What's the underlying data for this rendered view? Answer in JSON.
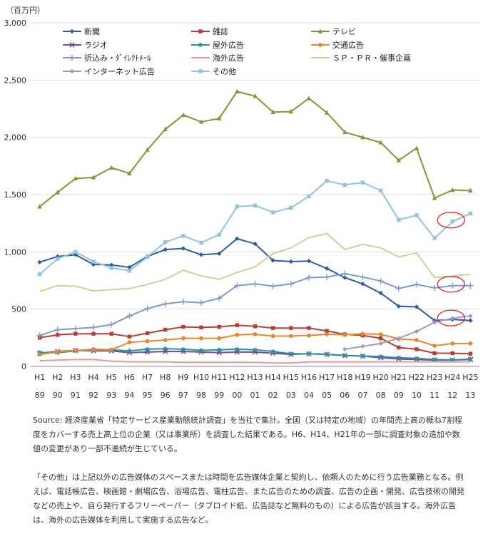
{
  "chart_data": {
    "type": "line",
    "ylabel": "（百万円）",
    "ylim": [
      0,
      3000
    ],
    "yticks": [
      "0",
      "500",
      "1,000",
      "1,500",
      "2,000",
      "2,500",
      "3,000"
    ],
    "grid": "horizontal",
    "legend_position": "top-left",
    "x_top": [
      "H1",
      "H2",
      "H3",
      "H4",
      "H5",
      "H6",
      "H7",
      "H8",
      "H9",
      "H10",
      "H11",
      "H12",
      "H13",
      "H14",
      "H15",
      "H16",
      "H17",
      "H18",
      "H19",
      "H20",
      "H21",
      "H22",
      "H23",
      "H24",
      "H25"
    ],
    "x_bottom": [
      "89",
      "90",
      "91",
      "92",
      "93",
      "94",
      "95",
      "96",
      "97",
      "98",
      "99",
      "00",
      "01",
      "02",
      "03",
      "04",
      "05",
      "06",
      "07",
      "08",
      "09",
      "10",
      "11",
      "12",
      "13"
    ],
    "series": [
      {
        "name": "新聞",
        "color": "#2e5d9c",
        "marker": "diamond",
        "values": [
          910,
          960,
          975,
          890,
          885,
          865,
          960,
          1020,
          1030,
          975,
          985,
          1115,
          1070,
          925,
          915,
          920,
          855,
          775,
          720,
          640,
          525,
          520,
          400,
          410,
          400
        ]
      },
      {
        "name": "雑誌",
        "color": "#b5403a",
        "marker": "square",
        "values": [
          250,
          275,
          285,
          285,
          285,
          260,
          290,
          320,
          345,
          340,
          345,
          360,
          350,
          335,
          335,
          335,
          310,
          280,
          270,
          245,
          165,
          150,
          115,
          115,
          110
        ]
      },
      {
        "name": "テレビ",
        "color": "#7a9a32",
        "marker": "triangle",
        "values": [
          1395,
          1520,
          1640,
          1650,
          1735,
          1685,
          1890,
          2070,
          2195,
          2135,
          2165,
          2400,
          2360,
          2220,
          2225,
          2340,
          2215,
          2045,
          2000,
          1955,
          1800,
          1905,
          1470,
          1540,
          1535
        ]
      },
      {
        "name": "ラジオ",
        "color": "#6e4c96",
        "marker": "x",
        "values": [
          115,
          130,
          140,
          135,
          135,
          120,
          125,
          130,
          130,
          125,
          120,
          125,
          125,
          115,
          105,
          110,
          105,
          95,
          90,
          75,
          65,
          60,
          55,
          55,
          60
        ]
      },
      {
        "name": "屋外広告",
        "color": "#2c8f9b",
        "marker": "star",
        "values": [
          120,
          120,
          135,
          150,
          145,
          135,
          150,
          155,
          150,
          140,
          145,
          150,
          145,
          130,
          110,
          110,
          105,
          95,
          90,
          85,
          75,
          70,
          60,
          55,
          65
        ]
      },
      {
        "name": "交通広告",
        "color": "#e08a2e",
        "marker": "circle",
        "values": [
          105,
          125,
          140,
          145,
          145,
          210,
          220,
          230,
          245,
          245,
          245,
          275,
          280,
          265,
          265,
          270,
          280,
          275,
          285,
          280,
          240,
          230,
          180,
          200,
          200
        ]
      },
      {
        "name": "折込み・ﾀﾞｲﾚｸﾄﾒｰﾙ",
        "color": "#7d9ac9",
        "marker": "plus",
        "values": [
          270,
          320,
          330,
          340,
          365,
          440,
          505,
          545,
          565,
          555,
          595,
          705,
          720,
          700,
          720,
          775,
          780,
          810,
          780,
          745,
          680,
          715,
          685,
          705,
          705
        ]
      },
      {
        "name": "海外広告",
        "color": "#e59a97",
        "marker": "none",
        "values": [
          50,
          55,
          60,
          60,
          45,
          40,
          40,
          40,
          35,
          35,
          35,
          35,
          35,
          30,
          30,
          40,
          40,
          40,
          40,
          40,
          40,
          40,
          40,
          40,
          40
        ]
      },
      {
        "name": "ＳＰ・ＰＲ・催事企画",
        "color": "#c3d69b",
        "marker": "none",
        "values": [
          655,
          705,
          700,
          660,
          670,
          680,
          715,
          760,
          840,
          790,
          760,
          820,
          870,
          985,
          1035,
          1125,
          1160,
          1020,
          1065,
          1035,
          955,
          990,
          775,
          790,
          805
        ]
      },
      {
        "name": "インターネット広告",
        "color": "#a895c4",
        "marker": "diamond",
        "values": [
          null,
          null,
          null,
          null,
          null,
          null,
          null,
          null,
          null,
          null,
          null,
          null,
          null,
          null,
          null,
          null,
          null,
          150,
          175,
          200,
          245,
          305,
          385,
          420,
          440
        ]
      },
      {
        "name": "その他",
        "color": "#92c4dd",
        "marker": "square",
        "values": [
          805,
          940,
          1000,
          915,
          860,
          835,
          955,
          1085,
          1140,
          1080,
          1150,
          1395,
          1405,
          1345,
          1385,
          1485,
          1620,
          1585,
          1605,
          1535,
          1280,
          1320,
          1120,
          1265,
          1335
        ]
      }
    ],
    "highlights": [
      {
        "x": "H24",
        "y": 1265
      },
      {
        "x": "H24",
        "y": 705
      },
      {
        "x": "H24",
        "y": 410
      }
    ]
  },
  "notes": {
    "source": "Source: 経済産業省「特定サービス産業動態統計調査」を当社で集計。全国（又は特定の地域）の年間売上高の概ね7割程度をカバーする売上高上位の企業（又は事業所）を調査した結果である。H6、H14、H21年の一部に調査対象の追加や数値の変更があり一部不連続が生じている。",
    "other": "「その他」は上記以外の広告媒体のスペースまたは時間を広告媒体企業と契約し、依頼人のために行う広告業務となる。例えば、電話帳広告、映画館・劇場広告、浴場広告、電柱広告、また広告のための調査、広告の企画・開発、広告技術の開発などの売上や、自ら発行するフリーペーパー（タブロイド紙、広告誌など無料のもの）による広告が該当する。海外広告は、海外の広告媒体を利用して実施する広告など。"
  }
}
